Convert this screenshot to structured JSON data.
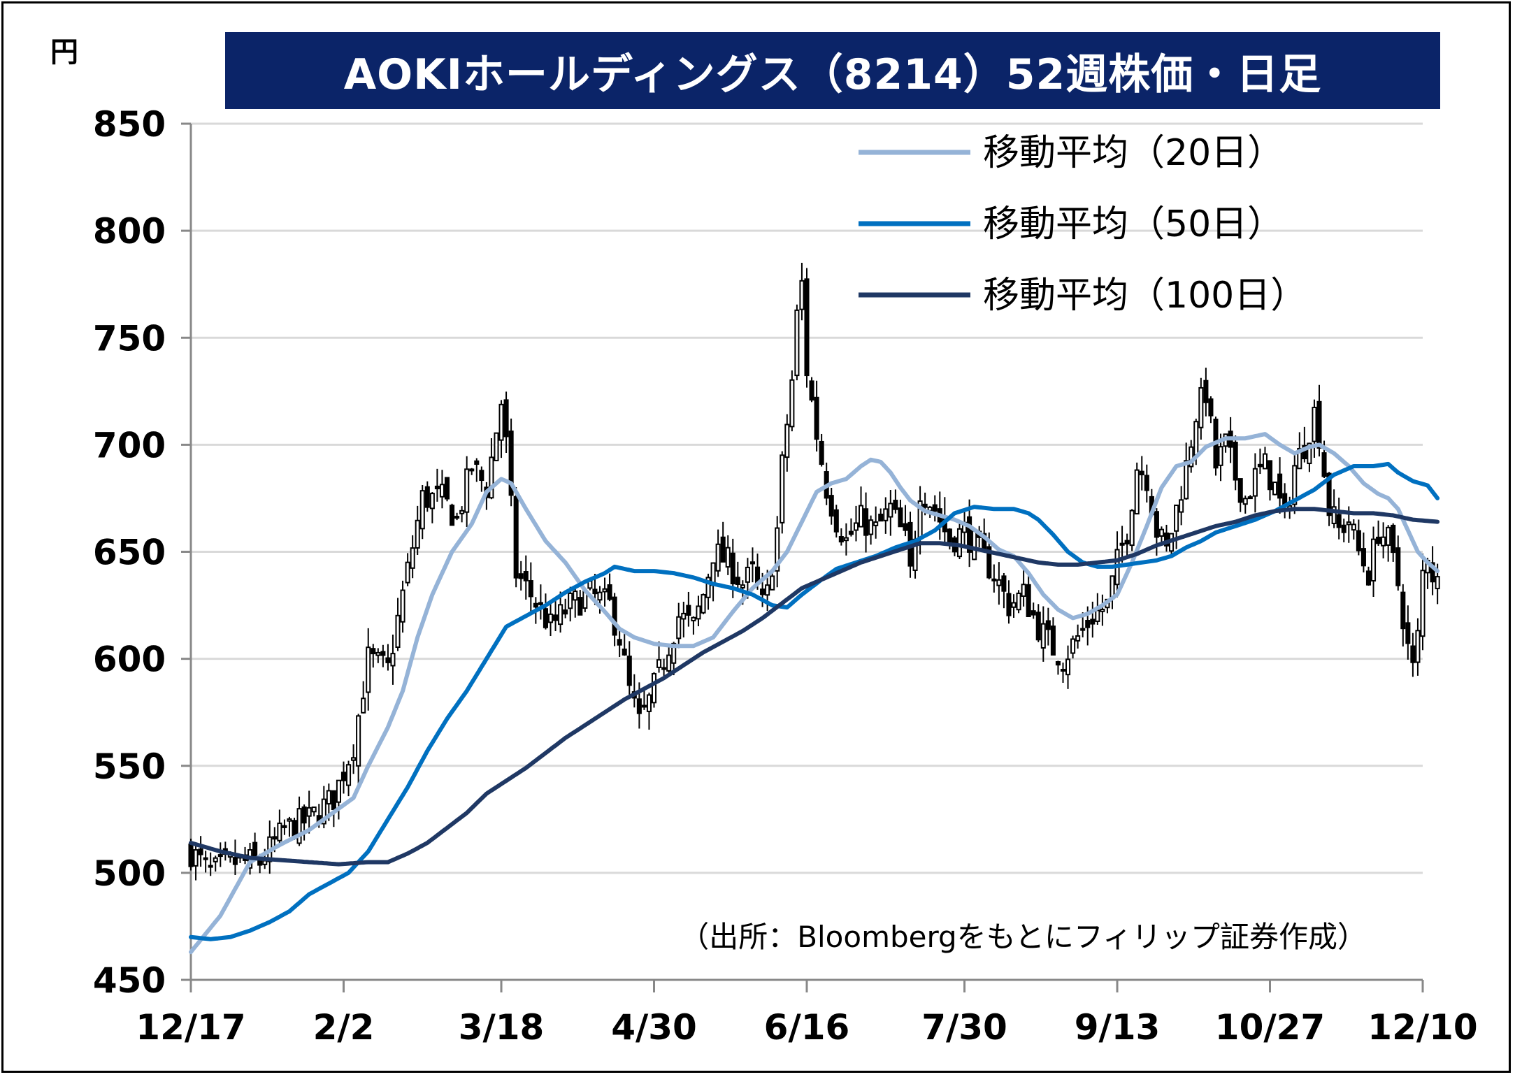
{
  "chart_data": {
    "type": "candlestick",
    "title": "AOKIホールディングス（8214）52週株価・日足",
    "ylabel": "円",
    "ylim": [
      450,
      850
    ],
    "yticks": [
      450,
      500,
      550,
      600,
      650,
      700,
      750,
      800,
      850
    ],
    "xlim": [
      0,
      250
    ],
    "xticks": [
      {
        "label": "12/17",
        "i": 0
      },
      {
        "label": "2/2",
        "i": 31
      },
      {
        "label": "3/18",
        "i": 63
      },
      {
        "label": "4/30",
        "i": 94
      },
      {
        "label": "6/16",
        "i": 125
      },
      {
        "label": "7/30",
        "i": 157
      },
      {
        "label": "9/13",
        "i": 188
      },
      {
        "label": "10/27",
        "i": 219
      },
      {
        "label": "12/10",
        "i": 250
      }
    ],
    "grid": true,
    "legend_position": "top-right",
    "source": "（出所：Bloombergをもとにフィリップ証券作成）",
    "colors": {
      "title_bg": "#0b2468",
      "ma20": "#95b3d7",
      "ma50": "#0070c0",
      "ma100": "#1f3864",
      "candle_up_fill": "#ffffff",
      "candle_down_fill": "#000000",
      "grid": "#d9d9d9"
    },
    "close_anchors": [
      [
        0,
        510
      ],
      [
        4,
        500
      ],
      [
        9,
        505
      ],
      [
        14,
        505
      ],
      [
        19,
        520
      ],
      [
        24,
        525
      ],
      [
        29,
        535
      ],
      [
        33,
        560
      ],
      [
        36,
        600
      ],
      [
        40,
        595
      ],
      [
        43,
        630
      ],
      [
        47,
        675
      ],
      [
        51,
        675
      ],
      [
        54,
        665
      ],
      [
        57,
        690
      ],
      [
        60,
        680
      ],
      [
        63,
        720
      ],
      [
        64,
        700
      ],
      [
        66,
        640
      ],
      [
        69,
        630
      ],
      [
        73,
        615
      ],
      [
        77,
        625
      ],
      [
        81,
        630
      ],
      [
        85,
        625
      ],
      [
        87,
        610
      ],
      [
        89,
        585
      ],
      [
        91,
        570
      ],
      [
        93,
        580
      ],
      [
        96,
        600
      ],
      [
        99,
        620
      ],
      [
        102,
        615
      ],
      [
        104,
        630
      ],
      [
        106,
        650
      ],
      [
        109,
        645
      ],
      [
        112,
        635
      ],
      [
        114,
        640
      ],
      [
        116,
        625
      ],
      [
        117,
        630
      ],
      [
        119,
        660
      ],
      [
        120,
        690
      ],
      [
        122,
        730
      ],
      [
        123,
        760
      ],
      [
        124,
        775
      ],
      [
        125,
        735
      ],
      [
        127,
        705
      ],
      [
        129,
        680
      ],
      [
        131,
        665
      ],
      [
        133,
        655
      ],
      [
        136,
        665
      ],
      [
        139,
        660
      ],
      [
        142,
        670
      ],
      [
        145,
        655
      ],
      [
        146,
        640
      ],
      [
        148,
        680
      ],
      [
        151,
        670
      ],
      [
        154,
        655
      ],
      [
        157,
        660
      ],
      [
        160,
        650
      ],
      [
        163,
        640
      ],
      [
        166,
        625
      ],
      [
        169,
        630
      ],
      [
        172,
        615
      ],
      [
        175,
        605
      ],
      [
        177,
        600
      ],
      [
        180,
        610
      ],
      [
        183,
        620
      ],
      [
        186,
        625
      ],
      [
        188,
        645
      ],
      [
        190,
        660
      ],
      [
        192,
        690
      ],
      [
        194,
        685
      ],
      [
        196,
        660
      ],
      [
        198,
        650
      ],
      [
        200,
        670
      ],
      [
        202,
        690
      ],
      [
        204,
        715
      ],
      [
        206,
        725
      ],
      [
        208,
        690
      ],
      [
        210,
        700
      ],
      [
        212,
        685
      ],
      [
        214,
        675
      ],
      [
        216,
        685
      ],
      [
        218,
        690
      ],
      [
        220,
        680
      ],
      [
        222,
        665
      ],
      [
        224,
        690
      ],
      [
        226,
        700
      ],
      [
        228,
        715
      ],
      [
        229,
        705
      ],
      [
        231,
        670
      ],
      [
        233,
        660
      ],
      [
        235,
        665
      ],
      [
        237,
        650
      ],
      [
        239,
        640
      ],
      [
        241,
        660
      ],
      [
        243,
        655
      ],
      [
        245,
        635
      ],
      [
        247,
        605
      ],
      [
        248,
        595
      ],
      [
        249,
        610
      ],
      [
        250,
        640
      ],
      [
        251,
        650
      ],
      [
        252,
        640
      ],
      [
        253,
        635
      ]
    ],
    "series": [
      {
        "name": "移動平均（20日）",
        "window": 20,
        "anchors": [
          [
            0,
            463
          ],
          [
            6,
            480
          ],
          [
            12,
            505
          ],
          [
            18,
            513
          ],
          [
            24,
            520
          ],
          [
            30,
            530
          ],
          [
            33,
            535
          ],
          [
            36,
            550
          ],
          [
            40,
            568
          ],
          [
            43,
            585
          ],
          [
            46,
            610
          ],
          [
            49,
            630
          ],
          [
            53,
            650
          ],
          [
            57,
            663
          ],
          [
            60,
            678
          ],
          [
            63,
            684
          ],
          [
            65,
            682
          ],
          [
            68,
            670
          ],
          [
            72,
            655
          ],
          [
            76,
            645
          ],
          [
            80,
            632
          ],
          [
            84,
            622
          ],
          [
            87,
            614
          ],
          [
            90,
            610
          ],
          [
            94,
            607
          ],
          [
            98,
            606
          ],
          [
            102,
            606
          ],
          [
            106,
            610
          ],
          [
            110,
            622
          ],
          [
            114,
            633
          ],
          [
            118,
            641
          ],
          [
            121,
            650
          ],
          [
            124,
            664
          ],
          [
            127,
            678
          ],
          [
            130,
            682
          ],
          [
            133,
            684
          ],
          [
            136,
            690
          ],
          [
            138,
            693
          ],
          [
            140,
            692
          ],
          [
            142,
            687
          ],
          [
            144,
            680
          ],
          [
            146,
            674
          ],
          [
            149,
            669
          ],
          [
            152,
            667
          ],
          [
            155,
            665
          ],
          [
            158,
            662
          ],
          [
            161,
            657
          ],
          [
            164,
            651
          ],
          [
            167,
            648
          ],
          [
            170,
            640
          ],
          [
            173,
            630
          ],
          [
            176,
            623
          ],
          [
            179,
            619
          ],
          [
            182,
            621
          ],
          [
            185,
            625
          ],
          [
            188,
            630
          ],
          [
            191,
            645
          ],
          [
            194,
            662
          ],
          [
            197,
            680
          ],
          [
            200,
            690
          ],
          [
            203,
            692
          ],
          [
            206,
            699
          ],
          [
            210,
            703
          ],
          [
            214,
            703
          ],
          [
            218,
            705
          ],
          [
            221,
            700
          ],
          [
            224,
            696
          ],
          [
            227,
            699
          ],
          [
            229,
            700
          ],
          [
            232,
            696
          ],
          [
            235,
            690
          ],
          [
            238,
            682
          ],
          [
            241,
            677
          ],
          [
            243,
            675
          ],
          [
            245,
            670
          ],
          [
            247,
            660
          ],
          [
            249,
            650
          ],
          [
            251,
            645
          ],
          [
            253,
            641
          ]
        ]
      },
      {
        "name": "移動平均（50日）",
        "window": 50,
        "anchors": [
          [
            0,
            470
          ],
          [
            4,
            469
          ],
          [
            8,
            470
          ],
          [
            12,
            473
          ],
          [
            16,
            477
          ],
          [
            20,
            482
          ],
          [
            24,
            490
          ],
          [
            28,
            495
          ],
          [
            32,
            500
          ],
          [
            36,
            510
          ],
          [
            40,
            525
          ],
          [
            44,
            540
          ],
          [
            48,
            557
          ],
          [
            52,
            572
          ],
          [
            56,
            585
          ],
          [
            60,
            600
          ],
          [
            64,
            615
          ],
          [
            68,
            620
          ],
          [
            72,
            625
          ],
          [
            76,
            631
          ],
          [
            80,
            636
          ],
          [
            84,
            640
          ],
          [
            86,
            643
          ],
          [
            88,
            642
          ],
          [
            90,
            641
          ],
          [
            94,
            641
          ],
          [
            98,
            640
          ],
          [
            102,
            638
          ],
          [
            106,
            635
          ],
          [
            110,
            633
          ],
          [
            114,
            630
          ],
          [
            118,
            625
          ],
          [
            121,
            624
          ],
          [
            124,
            630
          ],
          [
            128,
            637
          ],
          [
            131,
            642
          ],
          [
            135,
            645
          ],
          [
            139,
            648
          ],
          [
            143,
            652
          ],
          [
            147,
            655
          ],
          [
            151,
            660
          ],
          [
            155,
            668
          ],
          [
            159,
            671
          ],
          [
            163,
            670
          ],
          [
            167,
            670
          ],
          [
            170,
            668
          ],
          [
            172,
            665
          ],
          [
            175,
            658
          ],
          [
            178,
            650
          ],
          [
            181,
            645
          ],
          [
            184,
            643
          ],
          [
            187,
            643
          ],
          [
            190,
            644
          ],
          [
            193,
            645
          ],
          [
            196,
            646
          ],
          [
            199,
            648
          ],
          [
            202,
            652
          ],
          [
            205,
            655
          ],
          [
            208,
            659
          ],
          [
            212,
            662
          ],
          [
            216,
            665
          ],
          [
            220,
            669
          ],
          [
            224,
            674
          ],
          [
            228,
            679
          ],
          [
            232,
            686
          ],
          [
            236,
            690
          ],
          [
            240,
            690
          ],
          [
            243,
            691
          ],
          [
            245,
            687
          ],
          [
            248,
            683
          ],
          [
            251,
            681
          ],
          [
            253,
            675
          ]
        ]
      },
      {
        "name": "移動平均（100日）",
        "window": 100,
        "anchors": [
          [
            0,
            514
          ],
          [
            6,
            510
          ],
          [
            12,
            507
          ],
          [
            18,
            506
          ],
          [
            24,
            505
          ],
          [
            30,
            504
          ],
          [
            36,
            505
          ],
          [
            40,
            505
          ],
          [
            44,
            509
          ],
          [
            48,
            514
          ],
          [
            52,
            521
          ],
          [
            56,
            528
          ],
          [
            60,
            537
          ],
          [
            64,
            543
          ],
          [
            68,
            549
          ],
          [
            72,
            556
          ],
          [
            76,
            563
          ],
          [
            80,
            569
          ],
          [
            84,
            575
          ],
          [
            88,
            581
          ],
          [
            92,
            586
          ],
          [
            96,
            591
          ],
          [
            100,
            597
          ],
          [
            104,
            603
          ],
          [
            108,
            608
          ],
          [
            112,
            613
          ],
          [
            116,
            619
          ],
          [
            120,
            626
          ],
          [
            124,
            633
          ],
          [
            128,
            637
          ],
          [
            132,
            641
          ],
          [
            136,
            645
          ],
          [
            140,
            648
          ],
          [
            144,
            651
          ],
          [
            148,
            654
          ],
          [
            152,
            654
          ],
          [
            156,
            653
          ],
          [
            160,
            651
          ],
          [
            164,
            649
          ],
          [
            168,
            647
          ],
          [
            172,
            645
          ],
          [
            176,
            644
          ],
          [
            180,
            644
          ],
          [
            184,
            645
          ],
          [
            188,
            646
          ],
          [
            192,
            649
          ],
          [
            196,
            653
          ],
          [
            200,
            656
          ],
          [
            204,
            659
          ],
          [
            208,
            662
          ],
          [
            212,
            664
          ],
          [
            216,
            667
          ],
          [
            220,
            669
          ],
          [
            224,
            670
          ],
          [
            228,
            670
          ],
          [
            232,
            669
          ],
          [
            236,
            668
          ],
          [
            240,
            668
          ],
          [
            244,
            667
          ],
          [
            248,
            665
          ],
          [
            253,
            664
          ]
        ]
      }
    ]
  }
}
